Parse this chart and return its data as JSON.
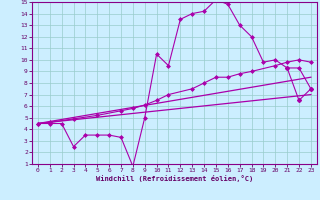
{
  "xlabel": "Windchill (Refroidissement éolien,°C)",
  "xlim": [
    -0.5,
    23.5
  ],
  "ylim": [
    1,
    15
  ],
  "xticks": [
    0,
    1,
    2,
    3,
    4,
    5,
    6,
    7,
    8,
    9,
    10,
    11,
    12,
    13,
    14,
    15,
    16,
    17,
    18,
    19,
    20,
    21,
    22,
    23
  ],
  "yticks": [
    1,
    2,
    3,
    4,
    5,
    6,
    7,
    8,
    9,
    10,
    11,
    12,
    13,
    14,
    15
  ],
  "bg_color": "#cceeff",
  "line_color": "#aa00aa",
  "grid_color": "#99cccc",
  "line1_x": [
    0,
    1,
    2,
    3,
    4,
    5,
    6,
    7,
    8,
    9,
    10,
    11,
    12,
    13,
    14,
    15,
    16,
    17,
    18,
    19,
    20,
    21,
    22,
    23
  ],
  "line1_y": [
    4.5,
    4.5,
    4.5,
    2.5,
    3.5,
    3.5,
    3.5,
    3.3,
    0.8,
    5.0,
    10.5,
    9.5,
    13.5,
    14.0,
    14.2,
    15.2,
    14.8,
    13.0,
    12.0,
    9.8,
    10.0,
    9.3,
    9.3,
    7.5
  ],
  "line2_x": [
    0,
    1,
    3,
    5,
    7,
    8,
    9,
    10,
    11,
    13,
    14,
    15,
    16,
    17,
    18,
    20,
    21,
    22,
    23
  ],
  "line2_y": [
    4.5,
    4.6,
    4.9,
    5.2,
    5.6,
    5.8,
    6.1,
    6.5,
    7.0,
    7.5,
    8.0,
    8.5,
    8.5,
    8.8,
    9.0,
    9.5,
    9.8,
    10.0,
    9.8
  ],
  "line3_x": [
    0,
    23
  ],
  "line3_y": [
    4.5,
    8.5
  ],
  "line4_x": [
    0,
    23
  ],
  "line4_y": [
    4.5,
    7.0
  ],
  "line5_x": [
    21,
    22,
    23
  ],
  "line5_y": [
    9.3,
    6.5,
    7.5
  ]
}
